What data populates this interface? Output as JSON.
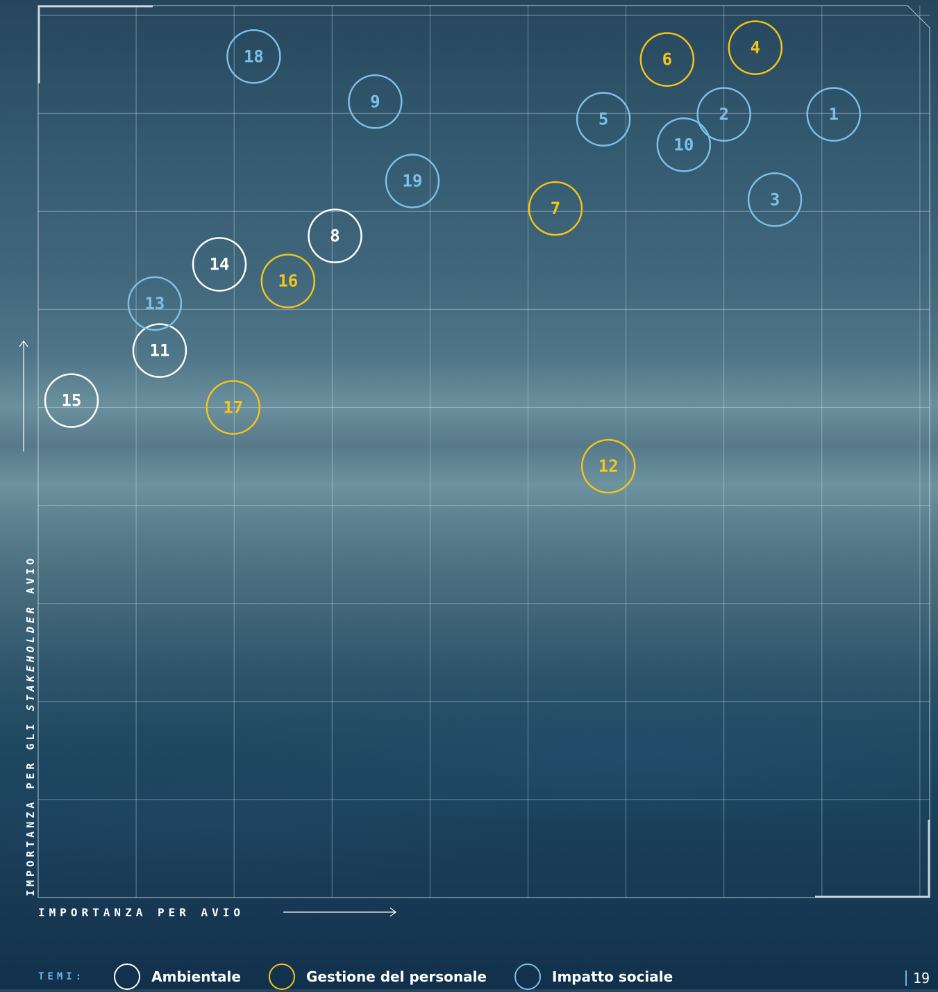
{
  "axes": {
    "y_title_prefix": "IMPORTANZA PER GLI ",
    "y_title_emph": "STAKEHOLDER",
    "y_title_suffix": " AVIO",
    "x_title": "IMPORTANZA PER AVIO"
  },
  "legend": {
    "title": "TEMI:",
    "items": [
      {
        "label": "Ambientale",
        "color": "#ffffff"
      },
      {
        "label": "Gestione del personale",
        "color": "#f5c518"
      },
      {
        "label": "Impatto sociale",
        "color": "#7cc0ea"
      }
    ]
  },
  "page_number": "19",
  "colors": {
    "grid": "#cfdde6",
    "frame": "#c9d6de",
    "Ambientale": "#ffffff",
    "Gestione del personale": "#f5c518",
    "Impatto sociale": "#7cc0ea"
  },
  "chart_data": {
    "type": "scatter",
    "title": "",
    "xlabel": "IMPORTANZA PER AVIO",
    "ylabel": "IMPORTANZA PER GLI STAKEHOLDER AVIO",
    "xlim": [
      0,
      9.1
    ],
    "ylim": [
      0,
      9.1
    ],
    "grid": true,
    "legend": "bottom",
    "series": [
      {
        "name": "Ambientale",
        "points": [
          {
            "label": "8",
            "x": 3.03,
            "y": 6.75
          },
          {
            "label": "11",
            "x": 1.24,
            "y": 5.58
          },
          {
            "label": "14",
            "x": 1.85,
            "y": 6.46
          },
          {
            "label": "15",
            "x": 0.34,
            "y": 5.07
          }
        ]
      },
      {
        "name": "Gestione del personale",
        "points": [
          {
            "label": "4",
            "x": 7.32,
            "y": 8.67
          },
          {
            "label": "6",
            "x": 6.42,
            "y": 8.55
          },
          {
            "label": "7",
            "x": 5.28,
            "y": 7.03
          },
          {
            "label": "12",
            "x": 5.82,
            "y": 4.4
          },
          {
            "label": "16",
            "x": 2.55,
            "y": 6.29
          },
          {
            "label": "17",
            "x": 1.99,
            "y": 5.0
          }
        ]
      },
      {
        "name": "Impatto sociale",
        "points": [
          {
            "label": "1",
            "x": 8.12,
            "y": 7.99
          },
          {
            "label": "2",
            "x": 7.0,
            "y": 7.99
          },
          {
            "label": "3",
            "x": 7.52,
            "y": 7.12
          },
          {
            "label": "5",
            "x": 5.77,
            "y": 7.94
          },
          {
            "label": "9",
            "x": 3.44,
            "y": 8.12
          },
          {
            "label": "10",
            "x": 6.59,
            "y": 7.68
          },
          {
            "label": "13",
            "x": 1.19,
            "y": 6.06
          },
          {
            "label": "18",
            "x": 2.2,
            "y": 8.58
          },
          {
            "label": "19",
            "x": 3.82,
            "y": 7.31
          }
        ]
      }
    ]
  }
}
